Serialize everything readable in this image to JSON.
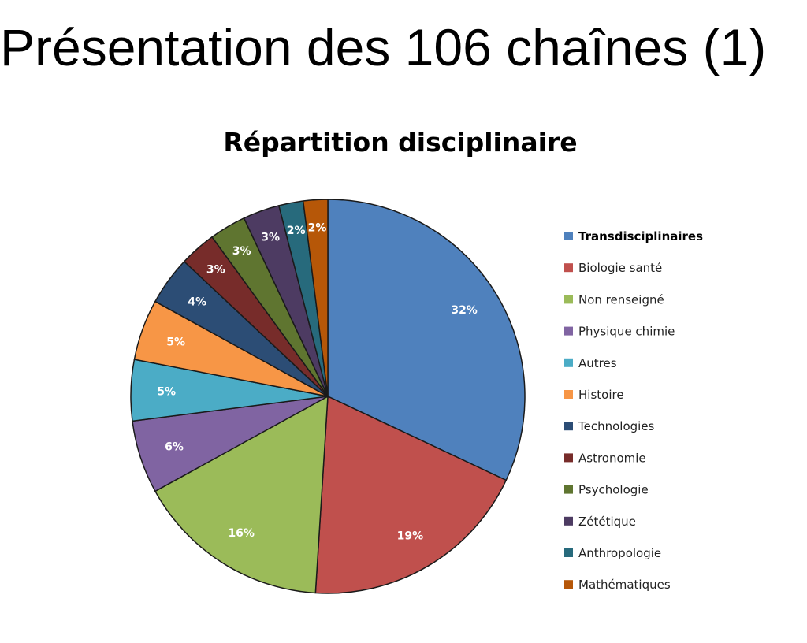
{
  "slide": {
    "title": "Présentation des 106 chaînes (1)"
  },
  "chart_data": {
    "type": "pie",
    "title": "Répartition disciplinaire",
    "legend_position": "right",
    "slices": [
      {
        "label": "Transdisciplinaires",
        "value": 32,
        "display": "32%",
        "color": "#4F81BD",
        "legend_bold": true
      },
      {
        "label": "Biologie santé",
        "value": 19,
        "display": "19%",
        "color": "#C0504D"
      },
      {
        "label": "Non renseigné",
        "value": 16,
        "display": "16%",
        "color": "#9BBB59"
      },
      {
        "label": "Physique chimie",
        "value": 6,
        "display": "6%",
        "color": "#8064A2"
      },
      {
        "label": "Autres",
        "value": 5,
        "display": "5%",
        "color": "#4BACC6"
      },
      {
        "label": "Histoire",
        "value": 5,
        "display": "5%",
        "color": "#F79646"
      },
      {
        "label": "Technologies",
        "value": 4,
        "display": "4%",
        "color": "#2C4D75"
      },
      {
        "label": "Astronomie",
        "value": 3,
        "display": "3%",
        "color": "#772C2A"
      },
      {
        "label": "Psychologie",
        "value": 3,
        "display": "3%",
        "color": "#5F7530"
      },
      {
        "label": "Zététique",
        "value": 3,
        "display": "3%",
        "color": "#4D3B62"
      },
      {
        "label": "Anthropologie",
        "value": 2,
        "display": "2%",
        "color": "#276A7C"
      },
      {
        "label": "Mathématiques",
        "value": 2,
        "display": "2%",
        "color": "#B65708"
      }
    ]
  }
}
